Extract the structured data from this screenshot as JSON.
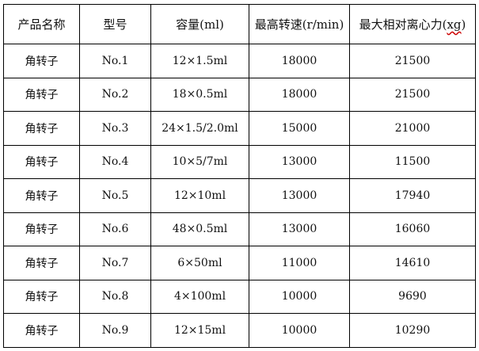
{
  "table": {
    "headers": {
      "name": "产品名称",
      "model": "型号",
      "capacity": "容量(ml)",
      "max_speed": "最高转速(r/min)",
      "max_rcf_prefix": "最大相对离心力(",
      "max_rcf_unit": "xg",
      "max_rcf_suffix": ")"
    },
    "spellcheck_underline_color": "#cc0000",
    "rows": [
      {
        "name": "角转子",
        "model": "No.1",
        "capacity": "12×1.5ml",
        "speed": "18000",
        "rcf": "21500"
      },
      {
        "name": "角转子",
        "model": "No.2",
        "capacity": "18×0.5ml",
        "speed": "18000",
        "rcf": "21500"
      },
      {
        "name": "角转子",
        "model": "No.3",
        "capacity": "24×1.5/2.0ml",
        "speed": "15000",
        "rcf": "21000"
      },
      {
        "name": "角转子",
        "model": "No.4",
        "capacity": "10×5/7ml",
        "speed": "13000",
        "rcf": "11500"
      },
      {
        "name": "角转子",
        "model": "No.5",
        "capacity": "12×10ml",
        "speed": "13000",
        "rcf": "17940"
      },
      {
        "name": "角转子",
        "model": "No.6",
        "capacity": "48×0.5ml",
        "speed": "13000",
        "rcf": "16060"
      },
      {
        "name": "角转子",
        "model": "No.7",
        "capacity": "6×50ml",
        "speed": "11000",
        "rcf": "14610"
      },
      {
        "name": "角转子",
        "model": "No.8",
        "capacity": "4×100ml",
        "speed": "10000",
        "rcf": "9690"
      },
      {
        "name": "角转子",
        "model": "No.9",
        "capacity": "12×15ml",
        "speed": "10000",
        "rcf": "10290"
      }
    ]
  }
}
